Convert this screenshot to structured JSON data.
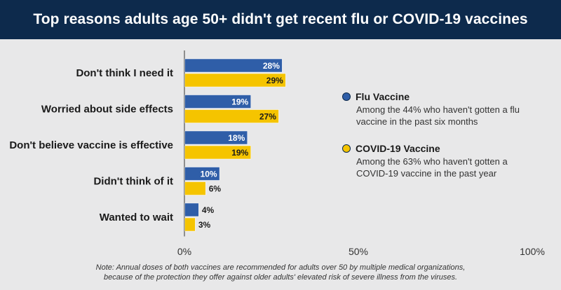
{
  "header": {
    "title": "Top reasons adults age 50+ didn't get recent flu or COVID-19 vaccines"
  },
  "colors": {
    "flu": "#2f5ea8",
    "covid": "#f5c400",
    "axis": "#333333",
    "header_bg": "#0d2a4c"
  },
  "chart_data": {
    "type": "bar",
    "orientation": "horizontal",
    "categories": [
      "Don't think I need it",
      "Worried about side effects",
      "Don't believe vaccine is effective",
      "Didn't think of it",
      "Wanted to wait"
    ],
    "series": [
      {
        "name": "Flu Vaccine",
        "values": [
          28,
          19,
          18,
          10,
          4
        ]
      },
      {
        "name": "COVID-19 Vaccine",
        "values": [
          29,
          27,
          19,
          6,
          3
        ]
      }
    ],
    "value_labels": [
      [
        "28%",
        "19%",
        "18%",
        "10%",
        "4%"
      ],
      [
        "29%",
        "27%",
        "19%",
        "6%",
        "3%"
      ]
    ],
    "xlim": [
      0,
      100
    ],
    "ticks": [
      0,
      50,
      100
    ],
    "tick_labels": [
      "0%",
      "50%",
      "100%"
    ],
    "grid": false,
    "legend_position": "right"
  },
  "legend": [
    {
      "name": "Flu Vaccine",
      "desc": "Among the 44% who haven't gotten a flu vaccine in the past six months"
    },
    {
      "name": "COVID-19 Vaccine",
      "desc": "Among the 63% who haven't gotten a COVID-19 vaccine in the past year"
    }
  ],
  "note": {
    "line1": "Note: Annual doses of both vaccines are recommended for adults over 50 by multiple medical organizations,",
    "line2": "because of the protection they offer against older adults' elevated risk of severe illness from the viruses."
  }
}
